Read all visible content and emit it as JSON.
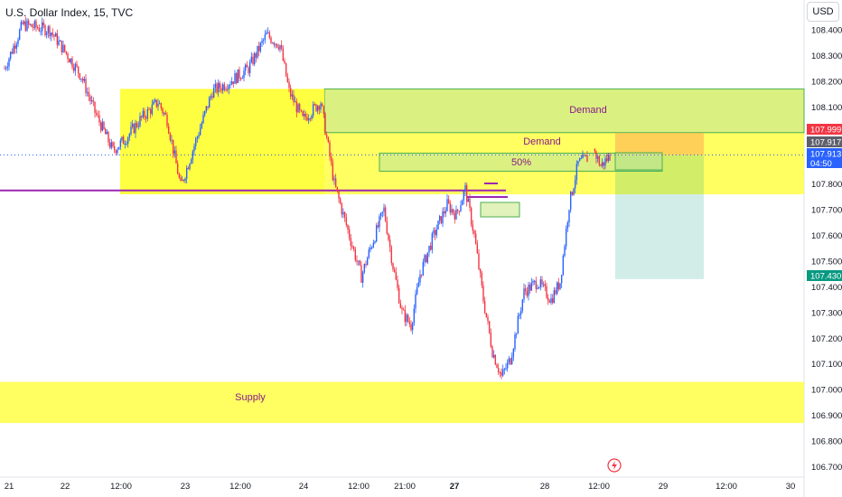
{
  "header": {
    "title": "U.S. Dollar Index, 15, TVC",
    "currency": "USD"
  },
  "chart_data": {
    "type": "candlestick",
    "title": "U.S. Dollar Index, 15, TVC",
    "ylim": [
      106.68,
      108.49
    ],
    "y_ticks": [
      "108.400",
      "108.300",
      "108.200",
      "108.100",
      "107.800",
      "107.700",
      "107.600",
      "107.500",
      "107.400",
      "107.300",
      "107.200",
      "107.100",
      "107.000",
      "106.900",
      "106.800",
      "106.700"
    ],
    "x_ticks": [
      "21",
      "22",
      "12:00",
      "23",
      "12:00",
      "24",
      "12:00",
      "21:00",
      "27",
      "28",
      "12:00",
      "29",
      "12:00",
      "30"
    ],
    "bold_x_ticks": [
      "27"
    ],
    "price_path": [
      {
        "t": 0,
        "p": 108.25
      },
      {
        "t": 4,
        "p": 108.42
      },
      {
        "t": 10,
        "p": 108.4
      },
      {
        "t": 14,
        "p": 108.3
      },
      {
        "t": 17,
        "p": 108.22
      },
      {
        "t": 20,
        "p": 108.08
      },
      {
        "t": 24,
        "p": 107.93
      },
      {
        "t": 27,
        "p": 107.98
      },
      {
        "t": 30,
        "p": 108.05
      },
      {
        "t": 34,
        "p": 108.12
      },
      {
        "t": 36,
        "p": 108.05
      },
      {
        "t": 39,
        "p": 107.79
      },
      {
        "t": 42,
        "p": 107.95
      },
      {
        "t": 46,
        "p": 108.16
      },
      {
        "t": 50,
        "p": 108.2
      },
      {
        "t": 54,
        "p": 108.25
      },
      {
        "t": 58,
        "p": 108.38
      },
      {
        "t": 61,
        "p": 108.34
      },
      {
        "t": 63,
        "p": 108.16
      },
      {
        "t": 66,
        "p": 108.05
      },
      {
        "t": 70,
        "p": 108.12
      },
      {
        "t": 73,
        "p": 107.8
      },
      {
        "t": 76,
        "p": 107.62
      },
      {
        "t": 79,
        "p": 107.44
      },
      {
        "t": 81,
        "p": 107.55
      },
      {
        "t": 84,
        "p": 107.7
      },
      {
        "t": 86,
        "p": 107.48
      },
      {
        "t": 88,
        "p": 107.3
      },
      {
        "t": 90,
        "p": 107.25
      },
      {
        "t": 92,
        "p": 107.45
      },
      {
        "t": 95,
        "p": 107.6
      },
      {
        "t": 98,
        "p": 107.72
      },
      {
        "t": 100,
        "p": 107.68
      },
      {
        "t": 102,
        "p": 107.78
      },
      {
        "t": 104,
        "p": 107.6
      },
      {
        "t": 106,
        "p": 107.35
      },
      {
        "t": 108,
        "p": 107.15
      },
      {
        "t": 110,
        "p": 107.05
      },
      {
        "t": 112,
        "p": 107.12
      },
      {
        "t": 115,
        "p": 107.38
      },
      {
        "t": 118,
        "p": 107.42
      },
      {
        "t": 121,
        "p": 107.35
      },
      {
        "t": 123,
        "p": 107.42
      },
      {
        "t": 125,
        "p": 107.72
      },
      {
        "t": 127,
        "p": 107.88
      },
      {
        "t": 129,
        "p": 107.9
      },
      {
        "t": 130,
        "p": 107.95
      },
      {
        "t": 132,
        "p": 107.87
      },
      {
        "t": 134,
        "p": 107.91
      }
    ],
    "zones": [
      {
        "label": "Demand",
        "y": [
          107.76,
          108.17
        ],
        "style": "yellow"
      },
      {
        "label": "Demand",
        "y": [
          108.0,
          108.17
        ],
        "style": "green"
      },
      {
        "label": "50%",
        "y": [
          107.85,
          107.92
        ],
        "style": "green"
      },
      {
        "label": "Supply",
        "y": [
          106.87,
          107.03
        ],
        "style": "yellow"
      }
    ],
    "trade": {
      "entry": 107.913,
      "stop": 107.999,
      "target": 107.43
    },
    "horizontal_line": 107.775,
    "price_tags": [
      {
        "value": "107.999",
        "color": "#f23645"
      },
      {
        "value": "107.917",
        "color": "#5d606b"
      },
      {
        "value": "107.913",
        "sub": "04:50",
        "color": "#2962ff"
      },
      {
        "value": "107.430",
        "color": "#089981"
      }
    ]
  }
}
